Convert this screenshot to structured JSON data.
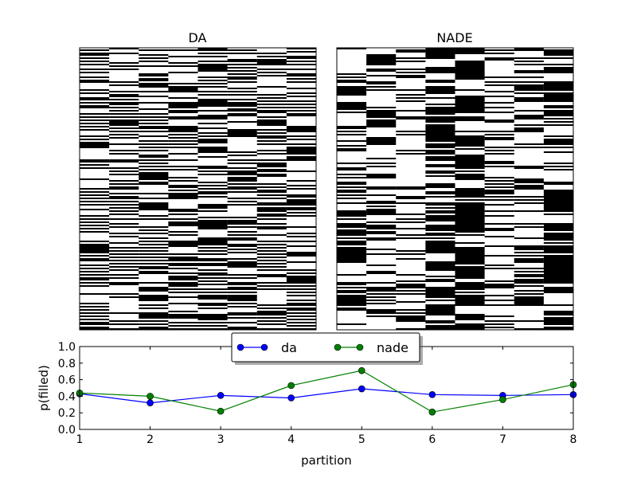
{
  "chart_data": [
    {
      "type": "heatmap",
      "title": "DA",
      "palette": [
        "#ffffff",
        "#000000"
      ],
      "columns": 8,
      "p_filled": [
        0.43,
        0.32,
        0.41,
        0.38,
        0.49,
        0.42,
        0.41,
        0.42
      ],
      "grain": [
        1.2,
        1.2,
        1.2,
        1.3,
        1.4,
        1.3,
        1.2,
        1.2
      ]
    },
    {
      "type": "heatmap",
      "title": "NADE",
      "palette": [
        "#ffffff",
        "#000000"
      ],
      "columns": 8,
      "p_filled": [
        0.44,
        0.4,
        0.22,
        0.53,
        0.71,
        0.21,
        0.36,
        0.54
      ],
      "grain": [
        2.2,
        2.6,
        2.0,
        2.6,
        3.6,
        1.8,
        2.2,
        3.0
      ]
    },
    {
      "type": "line",
      "xlabel": "partition",
      "ylabel": "p(filled)",
      "x": [
        1,
        2,
        3,
        4,
        5,
        6,
        7,
        8
      ],
      "xlim": [
        1,
        8
      ],
      "ylim": [
        0.0,
        1.0
      ],
      "xticks": [
        "1",
        "2",
        "3",
        "4",
        "5",
        "6",
        "7",
        "8"
      ],
      "yticks": [
        "0.0",
        "0.2",
        "0.4",
        "0.6",
        "0.8",
        "1.0"
      ],
      "legend_position": "top-center",
      "series": [
        {
          "name": "da",
          "color": "#0000ff",
          "values": [
            0.43,
            0.32,
            0.41,
            0.38,
            0.49,
            0.42,
            0.41,
            0.42
          ]
        },
        {
          "name": "nade",
          "color": "#008000",
          "values": [
            0.44,
            0.4,
            0.22,
            0.53,
            0.71,
            0.21,
            0.36,
            0.54
          ]
        }
      ]
    }
  ]
}
